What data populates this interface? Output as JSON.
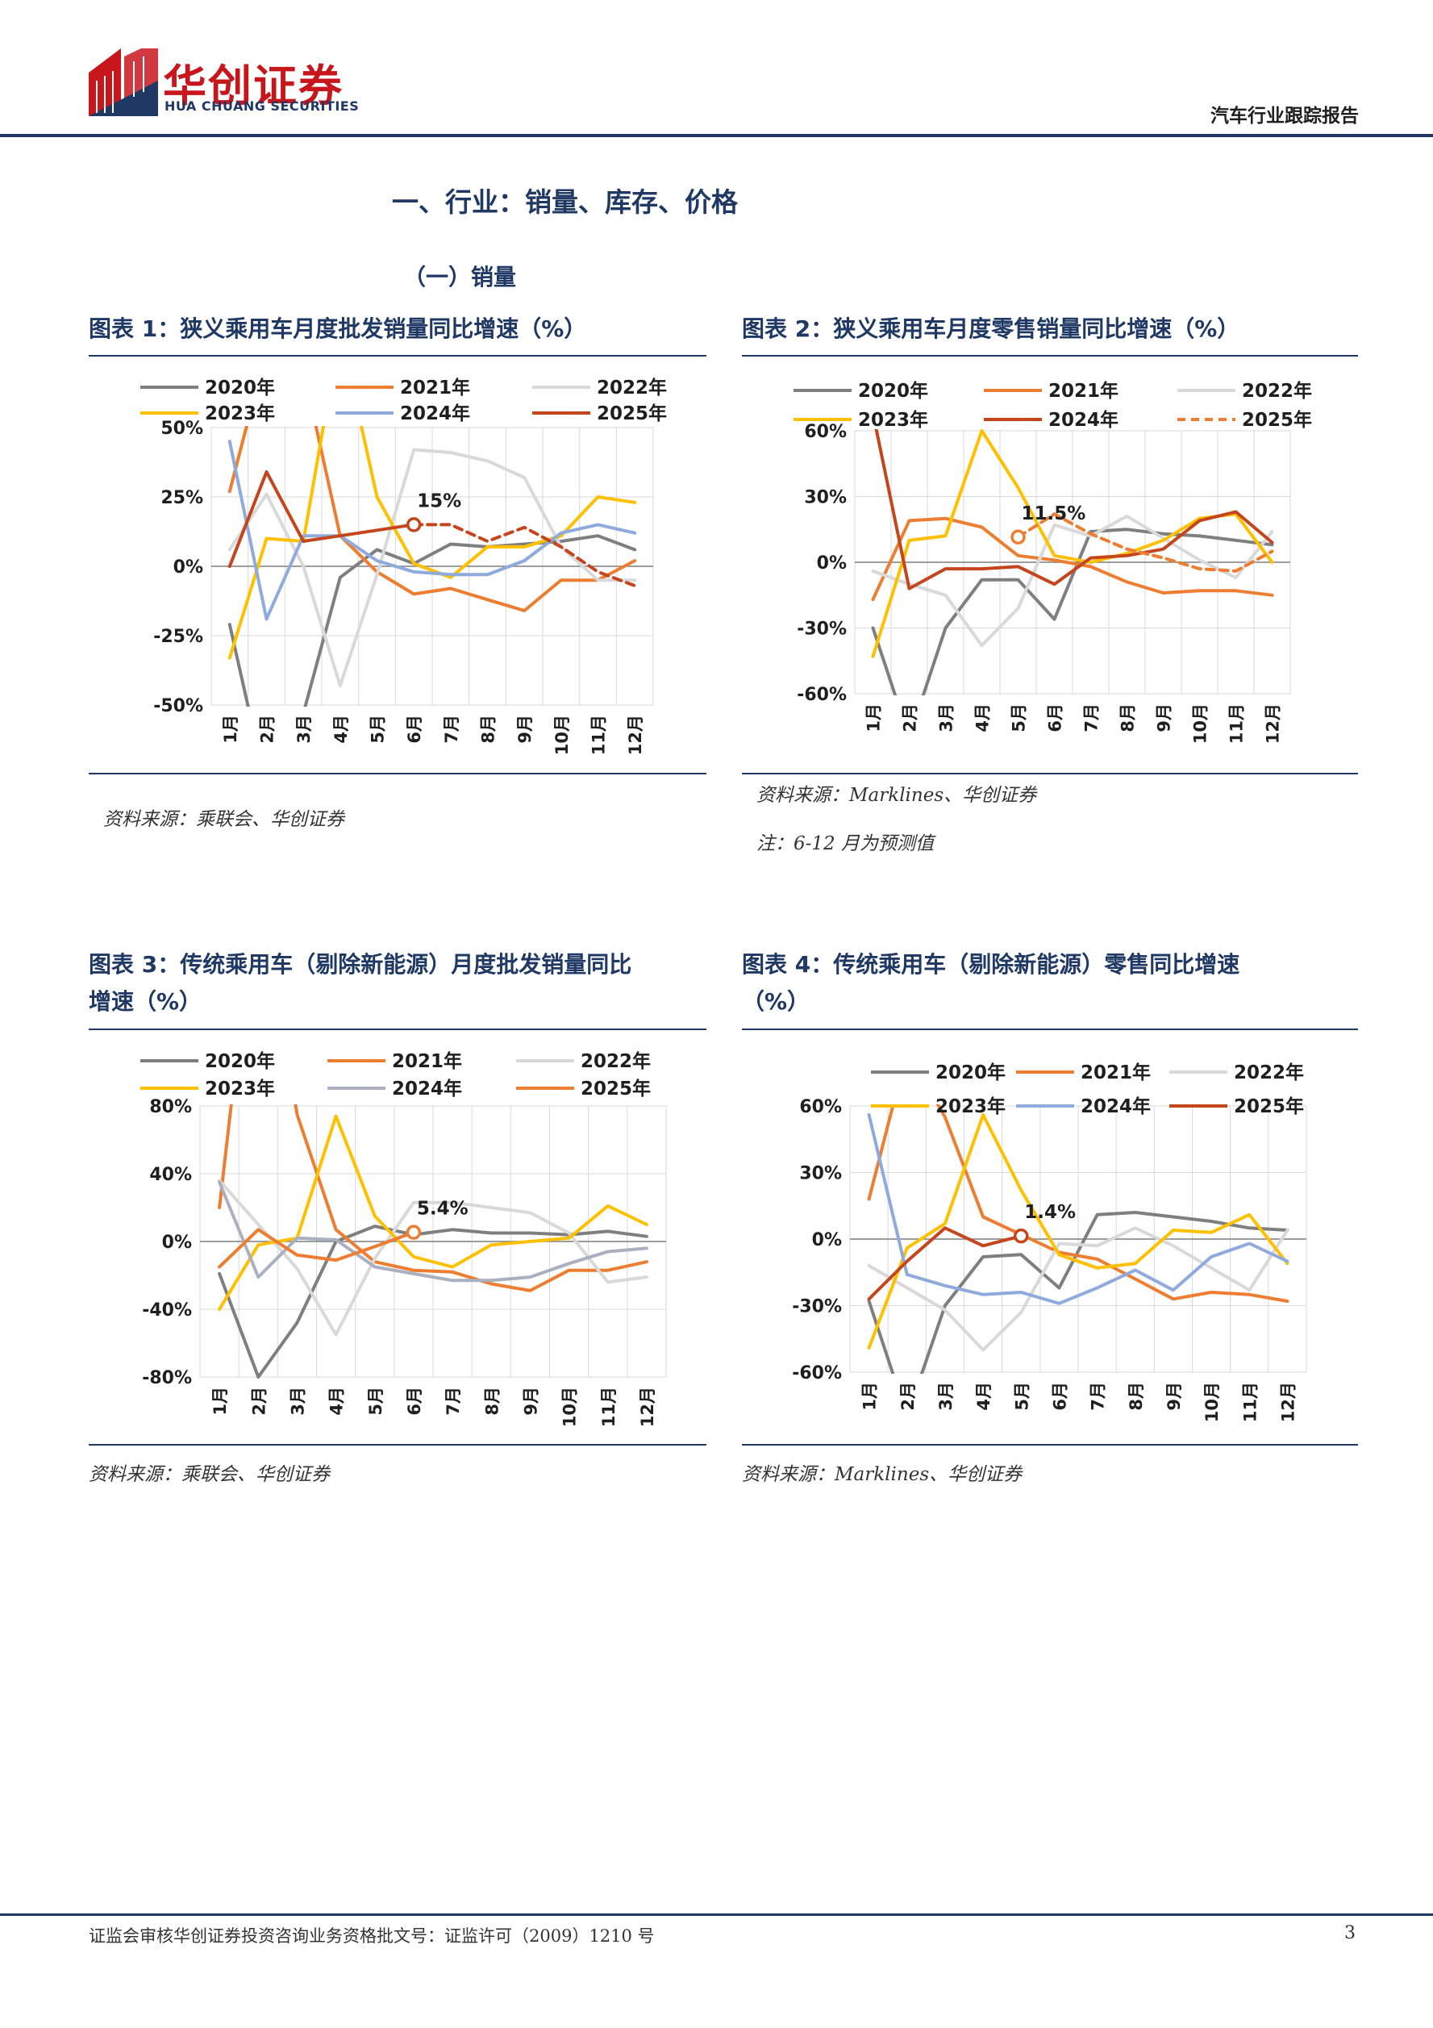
{
  "header": {
    "logo_cn": "华创证券",
    "logo_en": "HUA CHUANG SECURITIES",
    "report_type": "汽车行业跟踪报告"
  },
  "section": {
    "h1": "一、行业：销量、库存、价格",
    "h2": "（一）销量"
  },
  "figures": [
    {
      "title": "图表 1：狭义乘用车月度批发销量同比增速（%）",
      "source": "资料来源：乘联会、华创证券",
      "note": ""
    },
    {
      "title": "图表 2：狭义乘用车月度零售销量同比增速（%）",
      "source": "资料来源：Marklines、华创证券",
      "note": "注：6-12 月为预测值"
    },
    {
      "title_line1": "图表 3：传统乘用车（剔除新能源）月度批发销量同比",
      "title_line2": "增速（%）",
      "source": "资料来源：乘联会、华创证券",
      "note": ""
    },
    {
      "title_line1": "图表 4：传统乘用车（剔除新能源）零售同比增速",
      "title_line2": "（%）",
      "source": "资料来源：Marklines、华创证券",
      "note": ""
    }
  ],
  "colors": {
    "c2020": "#7f7f7f",
    "c2021": "#ed7d31",
    "c2022": "#d9d9d9",
    "c2023": "#ffc000",
    "c2024_blue": "#8faadc",
    "c2024_red": "#c5451c",
    "c2024_gray": "#aab0c0",
    "c2025_red": "#c5451c",
    "c2025_orange": "#ed7d31",
    "navy": "#1f3864"
  },
  "chart_data": [
    {
      "type": "line",
      "categories": [
        "1月",
        "2月",
        "3月",
        "4月",
        "5月",
        "6月",
        "7月",
        "8月",
        "9月",
        "10月",
        "11月",
        "12月"
      ],
      "ylim": [
        -50,
        50
      ],
      "yticks": [
        50,
        25,
        0,
        -25,
        -50
      ],
      "ytick_labels": [
        "50%",
        "25%",
        "0%",
        "-25%",
        "-50%"
      ],
      "grid": true,
      "legend": "top",
      "annotation": {
        "text": "15%",
        "x": "6月",
        "y": 15
      },
      "series": [
        {
          "name": "2020年",
          "color": "#7f7f7f",
          "dash": false,
          "values": [
            -21,
            -80,
            -53,
            -4,
            6,
            1,
            8,
            7,
            8,
            9,
            11,
            6
          ]
        },
        {
          "name": "2021年",
          "color": "#ed7d31",
          "dash": false,
          "values": [
            27,
            78,
            71,
            11,
            -2,
            -10,
            -8,
            -12,
            -16,
            -5,
            -5,
            2
          ]
        },
        {
          "name": "2022年",
          "color": "#d9d9d9",
          "dash": false,
          "values": [
            6,
            26,
            0,
            -43,
            -3,
            42,
            41,
            38,
            32,
            7,
            -5,
            -5
          ]
        },
        {
          "name": "2023年",
          "color": "#ffc000",
          "dash": false,
          "values": [
            -33,
            10,
            9,
            85,
            25,
            1,
            -4,
            7,
            7,
            11,
            25,
            23
          ]
        },
        {
          "name": "2024年",
          "color": "#8faadc",
          "dash": false,
          "values": [
            45,
            -19,
            11,
            11,
            2,
            -2,
            -3,
            -3,
            2,
            12,
            15,
            12
          ]
        },
        {
          "name": "2025年",
          "color": "#c5451c",
          "dash": false,
          "values": [
            0,
            34,
            9,
            11,
            13,
            15,
            null,
            null,
            null,
            null,
            null,
            null
          ]
        },
        {
          "name": "2025年",
          "color": "#c5451c",
          "dash": true,
          "values": [
            null,
            null,
            null,
            null,
            null,
            15,
            15,
            9,
            14,
            7,
            -2,
            -7
          ]
        }
      ]
    },
    {
      "type": "line",
      "categories": [
        "1月",
        "2月",
        "3月",
        "4月",
        "5月",
        "6月",
        "7月",
        "8月",
        "9月",
        "10月",
        "11月",
        "12月"
      ],
      "ylim": [
        -60,
        60
      ],
      "yticks": [
        60,
        30,
        0,
        -30,
        -60
      ],
      "ytick_labels": [
        "60%",
        "30%",
        "0%",
        "-30%",
        "-60%"
      ],
      "grid": true,
      "legend": "top",
      "annotation": {
        "text": "11.5%",
        "x": "5月",
        "y": 11.5
      },
      "series": [
        {
          "name": "2020年",
          "color": "#7f7f7f",
          "dash": false,
          "values": [
            -30,
            -80,
            -30,
            -8,
            -8,
            -26,
            14,
            15,
            13,
            12,
            10,
            8
          ]
        },
        {
          "name": "2021年",
          "color": "#ed7d31",
          "dash": false,
          "values": [
            -17,
            19,
            20,
            16,
            3,
            1,
            -2,
            -9,
            -14,
            -13,
            -13,
            -15
          ]
        },
        {
          "name": "2022年",
          "color": "#d9d9d9",
          "dash": false,
          "values": [
            -4,
            -10,
            -15,
            -38,
            -21,
            17,
            12,
            21,
            11,
            1,
            -7,
            14
          ]
        },
        {
          "name": "2023年",
          "color": "#ffc000",
          "dash": false,
          "values": [
            -43,
            10,
            12,
            60,
            34,
            3,
            0,
            4,
            10,
            20,
            22,
            0
          ]
        },
        {
          "name": "2024年",
          "color": "#c5451c",
          "dash": false,
          "values": [
            68,
            -12,
            -3,
            -3,
            -2,
            -10,
            2,
            3,
            6,
            19,
            23,
            9
          ]
        },
        {
          "name": "2025年",
          "color": "#ed7d31",
          "dash": true,
          "values": [
            null,
            null,
            null,
            null,
            11.5,
            22,
            13,
            6,
            2,
            -3,
            -4,
            5
          ]
        }
      ]
    },
    {
      "type": "line",
      "categories": [
        "1月",
        "2月",
        "3月",
        "4月",
        "5月",
        "6月",
        "7月",
        "8月",
        "9月",
        "10月",
        "11月",
        "12月"
      ],
      "ylim": [
        -80,
        80
      ],
      "yticks": [
        80,
        40,
        0,
        -40,
        -80
      ],
      "ytick_labels": [
        "80%",
        "40%",
        "0%",
        "-40%",
        "-80%"
      ],
      "grid": true,
      "legend": "top",
      "annotation": {
        "text": "5.4%",
        "x": "6月",
        "y": 5.4
      },
      "series": [
        {
          "name": "2020年",
          "color": "#7f7f7f",
          "dash": false,
          "values": [
            -19,
            -80,
            -48,
            0,
            9,
            4,
            7,
            5,
            5,
            4,
            6,
            3
          ]
        },
        {
          "name": "2021年",
          "color": "#ed7d31",
          "dash": false,
          "values": [
            20,
            220,
            75,
            7,
            -12,
            -17,
            -18,
            -25,
            -29,
            -17,
            -17,
            -12
          ]
        },
        {
          "name": "2022年",
          "color": "#d9d9d9",
          "dash": false,
          "values": [
            36,
            10,
            -16,
            -55,
            -10,
            23,
            23,
            20,
            17,
            5,
            -24,
            -21
          ]
        },
        {
          "name": "2023年",
          "color": "#ffc000",
          "dash": false,
          "values": [
            -40,
            -2,
            2,
            74,
            15,
            -9,
            -15,
            -2,
            0,
            2,
            21,
            10
          ]
        },
        {
          "name": "2024年",
          "color": "#aab0c0",
          "dash": false,
          "values": [
            35,
            -21,
            2,
            1,
            -15,
            -19,
            -23,
            -23,
            -21,
            -13,
            -6,
            -4
          ]
        },
        {
          "name": "2025年",
          "color": "#ed7d31",
          "dash": false,
          "values": [
            -15,
            7,
            -8,
            -11,
            -3,
            5.4,
            null,
            null,
            null,
            null,
            null,
            null
          ]
        }
      ]
    },
    {
      "type": "line",
      "categories": [
        "1月",
        "2月",
        "3月",
        "4月",
        "5月",
        "6月",
        "7月",
        "8月",
        "9月",
        "10月",
        "11月",
        "12月"
      ],
      "ylim": [
        -60,
        60
      ],
      "yticks": [
        60,
        30,
        0,
        -30,
        -60
      ],
      "ytick_labels": [
        "60%",
        "30%",
        "0%",
        "-30%",
        "-60%"
      ],
      "grid": true,
      "legend": "top",
      "annotation": {
        "text": "1.4%",
        "x": "5月",
        "y": 1.4
      },
      "series": [
        {
          "name": "2020年",
          "color": "#7f7f7f",
          "dash": false,
          "values": [
            -28,
            -80,
            -30,
            -8,
            -7,
            -22,
            11,
            12,
            10,
            8,
            5,
            4
          ]
        },
        {
          "name": "2021年",
          "color": "#ed7d31",
          "dash": false,
          "values": [
            18,
            85,
            55,
            10,
            2,
            -6,
            -9,
            -18,
            -27,
            -24,
            -25,
            -28
          ]
        },
        {
          "name": "2022年",
          "color": "#d9d9d9",
          "dash": false,
          "values": [
            -12,
            -22,
            -32,
            -50,
            -33,
            -2,
            -3,
            5,
            -3,
            -13,
            -23,
            4
          ]
        },
        {
          "name": "2023年",
          "color": "#ffc000",
          "dash": false,
          "values": [
            -49,
            -4,
            7,
            56,
            22,
            -7,
            -13,
            -11,
            4,
            3,
            11,
            -11
          ]
        },
        {
          "name": "2024年",
          "color": "#8faadc",
          "dash": false,
          "values": [
            56,
            -16,
            -21,
            -25,
            -24,
            -29,
            -22,
            -14,
            -23,
            -8,
            -2,
            -10
          ]
        },
        {
          "name": "2025年",
          "color": "#c5451c",
          "dash": false,
          "values": [
            -27,
            -10,
            5,
            -3,
            1.4,
            null,
            null,
            null,
            null,
            null,
            null,
            null
          ]
        }
      ]
    }
  ],
  "footer": {
    "text": "证监会审核华创证券投资咨询业务资格批文号：证监许可（2009）1210 号",
    "page": "3"
  }
}
